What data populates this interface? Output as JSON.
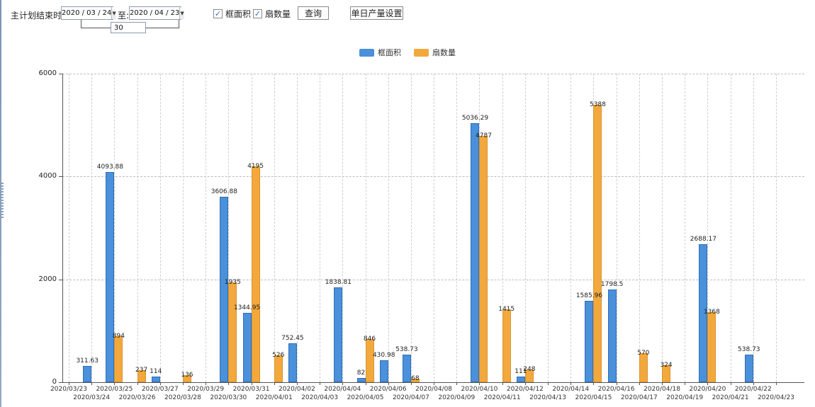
{
  "toolbar": {
    "date_range_label": "主计划结束时间:",
    "start_date": "2020 / 03 / 24",
    "to_label": "至:",
    "end_date": "2020 / 04 / 23",
    "days_value": "30",
    "checkbox_frame_area_label": "框面积",
    "checkbox_fan_count_label": "扇数量",
    "checkbox_frame_area_checked": "✓",
    "checkbox_fan_count_checked": "✓",
    "query_button": "查询",
    "daily_output_button": "单日产量设置",
    "dropdown_arrow": "▼"
  },
  "legend": {
    "items": [
      {
        "label": "框面积",
        "color": "#4a90da"
      },
      {
        "label": "扇数量",
        "color": "#f3a83d"
      }
    ]
  },
  "chart_data": {
    "type": "bar",
    "categories": [
      "2020/03/23",
      "2020/03/24",
      "2020/03/25",
      "2020/03/26",
      "2020/03/27",
      "2020/03/28",
      "2020/03/29",
      "2020/03/30",
      "2020/03/31",
      "2020/04/01",
      "2020/04/02",
      "2020/04/03",
      "2020/04/04",
      "2020/04/05",
      "2020/04/06",
      "2020/04/07",
      "2020/04/08",
      "2020/04/09",
      "2020/04/10",
      "2020/04/11",
      "2020/04/12",
      "2020/04/13",
      "2020/04/14",
      "2020/04/15",
      "2020/04/16",
      "2020/04/17",
      "2020/04/18",
      "2020/04/19",
      "2020/04/20",
      "2020/04/21",
      "2020/04/22",
      "2020/04/23"
    ],
    "series": [
      {
        "name": "框面积",
        "color": "#4a90da",
        "values": [
          null,
          311.63,
          4093.88,
          null,
          114,
          null,
          null,
          3606.88,
          1344.95,
          null,
          752.45,
          null,
          1838.81,
          82,
          430.98,
          538.73,
          null,
          null,
          5036.29,
          null,
          111,
          null,
          null,
          1585.96,
          1798.5,
          null,
          null,
          null,
          2688.17,
          null,
          538.73,
          null
        ]
      },
      {
        "name": "扇数量",
        "color": "#f3a83d",
        "values": [
          null,
          null,
          894,
          237,
          null,
          136,
          null,
          1935,
          4195,
          526,
          null,
          null,
          null,
          846,
          null,
          68,
          null,
          null,
          4787,
          1415,
          248,
          null,
          null,
          5388,
          null,
          570,
          324,
          null,
          1368,
          null,
          null,
          null
        ]
      }
    ],
    "ylim": [
      0,
      6000
    ],
    "yticks": [
      0,
      2000,
      4000,
      6000
    ],
    "grid": true,
    "legend_position": "top"
  }
}
